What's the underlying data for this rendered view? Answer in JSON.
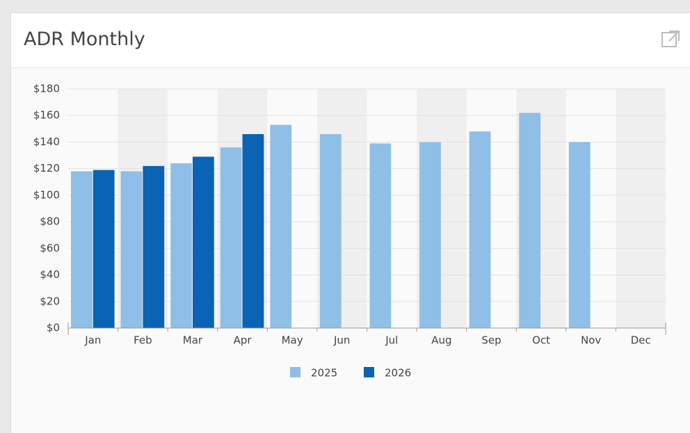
{
  "chart_data": {
    "type": "bar",
    "title": "ADR Monthly",
    "categories": [
      "Jan",
      "Feb",
      "Mar",
      "Apr",
      "May",
      "Jun",
      "Jul",
      "Aug",
      "Sep",
      "Oct",
      "Nov",
      "Dec"
    ],
    "series": [
      {
        "name": "2025",
        "color": "#8fbfe6",
        "values": [
          118,
          118,
          124,
          136,
          153,
          146,
          139,
          140,
          148,
          162,
          140,
          null
        ]
      },
      {
        "name": "2026",
        "color": "#0a63b3",
        "values": [
          119,
          122,
          129,
          146,
          null,
          null,
          null,
          null,
          null,
          null,
          null,
          null
        ]
      }
    ],
    "ylim": [
      0,
      180
    ],
    "yticks": [
      {
        "value": 0,
        "label": "$0"
      },
      {
        "value": 20,
        "label": "$20"
      },
      {
        "value": 40,
        "label": "$40"
      },
      {
        "value": 60,
        "label": "$60"
      },
      {
        "value": 80,
        "label": "$80"
      },
      {
        "value": 100,
        "label": "$100"
      },
      {
        "value": 120,
        "label": "$120"
      },
      {
        "value": 140,
        "label": "$140"
      },
      {
        "value": 160,
        "label": "$160"
      },
      {
        "value": 180,
        "label": "$180"
      }
    ],
    "grid": true,
    "legend": "bottom"
  }
}
